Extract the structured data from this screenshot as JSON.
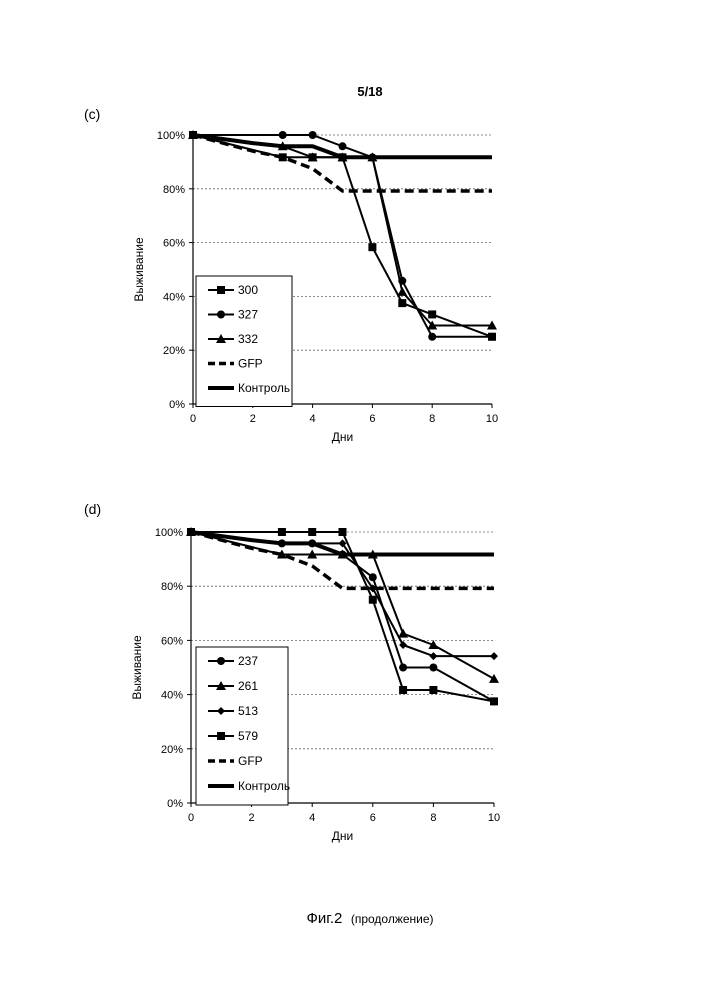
{
  "page_number": "5/18",
  "caption": {
    "main": "Фиг.2",
    "sub": "(продолжение)"
  },
  "chart_data": [
    {
      "panel_label": "(c)",
      "type": "line",
      "xlabel": "Дни",
      "ylabel": "Выживание",
      "xlim": [
        0,
        10
      ],
      "ylim": [
        0,
        100
      ],
      "x_ticks": [
        "0",
        "2",
        "4",
        "6",
        "8",
        "10"
      ],
      "y_ticks": [
        "0%",
        "20%",
        "40%",
        "60%",
        "80%",
        "100%"
      ],
      "grid": "horizontal-dashed",
      "legend_position": "lower-left",
      "series": [
        {
          "name": "300",
          "style": "line-square",
          "x": [
            0,
            3,
            4,
            5,
            6,
            7,
            8,
            10
          ],
          "y": [
            100,
            91.7,
            91.7,
            91.7,
            58.3,
            37.5,
            33.3,
            25
          ]
        },
        {
          "name": "327",
          "style": "line-circle",
          "x": [
            0,
            3,
            4,
            5,
            6,
            7,
            8,
            10
          ],
          "y": [
            100,
            100,
            100,
            95.8,
            91.7,
            45.8,
            25,
            25
          ]
        },
        {
          "name": "332",
          "style": "line-triangle",
          "x": [
            0,
            3,
            4,
            5,
            6,
            7,
            8,
            10
          ],
          "y": [
            100,
            95.8,
            91.7,
            91.7,
            91.7,
            41.7,
            29.2,
            29.2
          ]
        },
        {
          "name": "GFP",
          "style": "dashed-thick",
          "x": [
            0,
            1,
            2,
            3,
            4,
            5,
            6,
            7,
            8,
            9,
            10
          ],
          "y": [
            100,
            97,
            94,
            91.7,
            87.5,
            79.2,
            79.2,
            79.2,
            79.2,
            79.2,
            79.2
          ]
        },
        {
          "name": "Контроль",
          "style": "solid-thick",
          "x": [
            0,
            1,
            2,
            3,
            4,
            5,
            6,
            7,
            8,
            9,
            10
          ],
          "y": [
            100,
            98.5,
            97,
            95.8,
            95.8,
            91.7,
            91.7,
            91.7,
            91.7,
            91.7,
            91.7
          ]
        }
      ]
    },
    {
      "panel_label": "(d)",
      "type": "line",
      "xlabel": "Дни",
      "ylabel": "Выживание",
      "xlim": [
        0,
        10
      ],
      "ylim": [
        0,
        100
      ],
      "x_ticks": [
        "0",
        "2",
        "4",
        "6",
        "8",
        "10"
      ],
      "y_ticks": [
        "0%",
        "20%",
        "40%",
        "60%",
        "80%",
        "100%"
      ],
      "grid": "horizontal-dashed",
      "legend_position": "lower-left",
      "series": [
        {
          "name": "237",
          "style": "line-circle",
          "x": [
            0,
            3,
            4,
            5,
            6,
            7,
            8,
            10
          ],
          "y": [
            100,
            95.8,
            95.8,
            91.7,
            83.3,
            50,
            50,
            37.5
          ]
        },
        {
          "name": "261",
          "style": "line-triangle",
          "x": [
            0,
            3,
            4,
            5,
            6,
            7,
            8,
            10
          ],
          "y": [
            100,
            91.7,
            91.7,
            91.7,
            91.7,
            62.5,
            58.3,
            45.8
          ]
        },
        {
          "name": "513",
          "style": "line-diamond",
          "x": [
            0,
            3,
            4,
            5,
            6,
            7,
            8,
            10
          ],
          "y": [
            100,
            95.8,
            95.8,
            95.8,
            79.2,
            58.3,
            54.2,
            54.2
          ]
        },
        {
          "name": "579",
          "style": "line-square",
          "x": [
            0,
            3,
            4,
            5,
            6,
            7,
            8,
            10
          ],
          "y": [
            100,
            100,
            100,
            100,
            75,
            41.7,
            41.7,
            37.5
          ]
        },
        {
          "name": "GFP",
          "style": "dashed-thick",
          "x": [
            0,
            1,
            2,
            3,
            4,
            5,
            6,
            7,
            8,
            9,
            10
          ],
          "y": [
            100,
            97,
            94,
            91.7,
            87.5,
            79.2,
            79.2,
            79.2,
            79.2,
            79.2,
            79.2
          ]
        },
        {
          "name": "Контроль",
          "style": "solid-thick",
          "x": [
            0,
            1,
            2,
            3,
            4,
            5,
            6,
            7,
            8,
            9,
            10
          ],
          "y": [
            100,
            98.5,
            97,
            95.8,
            95.8,
            91.7,
            91.7,
            91.7,
            91.7,
            91.7,
            91.7
          ]
        }
      ]
    }
  ]
}
